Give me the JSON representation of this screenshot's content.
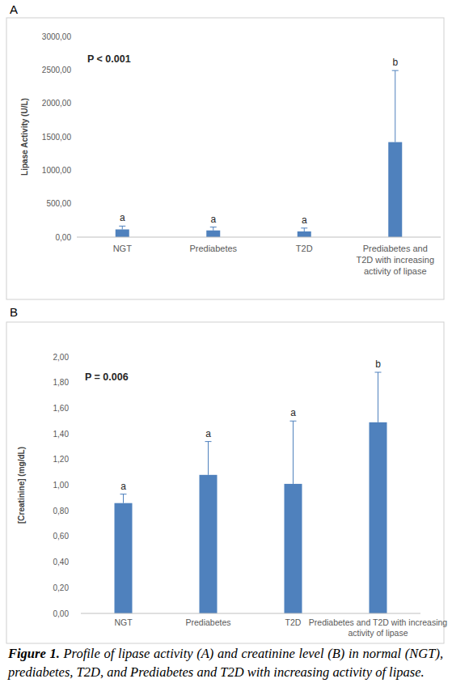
{
  "chart_data": [
    {
      "type": "bar",
      "title": "A",
      "annotations": [
        "P < 0.001"
      ],
      "y_label": "Lipase Activity (U/L)",
      "categories": [
        "NGT",
        "Prediabetes",
        "T2D",
        "Prediabetes and T2D with increasing activity of lipase"
      ],
      "values": [
        115,
        100,
        85,
        1420
      ],
      "errors": [
        50,
        50,
        50,
        1070
      ],
      "group_letters": [
        "a",
        "a",
        "a",
        "b"
      ],
      "color": "#4f81bd",
      "ylim": [
        0,
        3000
      ],
      "yticks": [
        {
          "value": 0,
          "label": "0,00"
        },
        {
          "value": 500,
          "label": "500,00"
        },
        {
          "value": 1000,
          "label": "1000,00"
        },
        {
          "value": 1500,
          "label": "1500,00"
        },
        {
          "value": 2000,
          "label": "2000,00"
        },
        {
          "value": 2500,
          "label": "2500,00"
        },
        {
          "value": 3000,
          "label": "3000,00"
        }
      ],
      "grid": false
    },
    {
      "type": "bar",
      "title": "B",
      "annotations": [
        "P = 0.006"
      ],
      "y_label": "[Creatinine] (mg/dL)",
      "categories": [
        "NGT",
        "Prediabetes",
        "T2D",
        "Prediabetes and T2D with increasing activity of lipase"
      ],
      "values": [
        0.86,
        1.08,
        1.01,
        1.49
      ],
      "errors": [
        0.07,
        0.26,
        0.49,
        0.39
      ],
      "group_letters": [
        "a",
        "a",
        "a",
        "b"
      ],
      "color": "#4f81bd",
      "ylim": [
        0,
        2.0
      ],
      "yticks": [
        {
          "value": 0,
          "label": "0,00"
        },
        {
          "value": 0.2,
          "label": "0,20"
        },
        {
          "value": 0.4,
          "label": "0,40"
        },
        {
          "value": 0.6,
          "label": "0,60"
        },
        {
          "value": 0.8,
          "label": "0,80"
        },
        {
          "value": 1.0,
          "label": "1,00"
        },
        {
          "value": 1.2,
          "label": "1,20"
        },
        {
          "value": 1.4,
          "label": "1,40"
        },
        {
          "value": 1.6,
          "label": "1,60"
        },
        {
          "value": 1.8,
          "label": "1,80"
        },
        {
          "value": 2.0,
          "label": "2,00"
        }
      ],
      "grid": false
    }
  ],
  "caption": {
    "label": "Figure 1.",
    "text": "Profile of lipase activity (A) and creatinine level (B) in normal (NGT), prediabetes, T2D, and Prediabetes and T2D with increasing activity of lipase."
  }
}
